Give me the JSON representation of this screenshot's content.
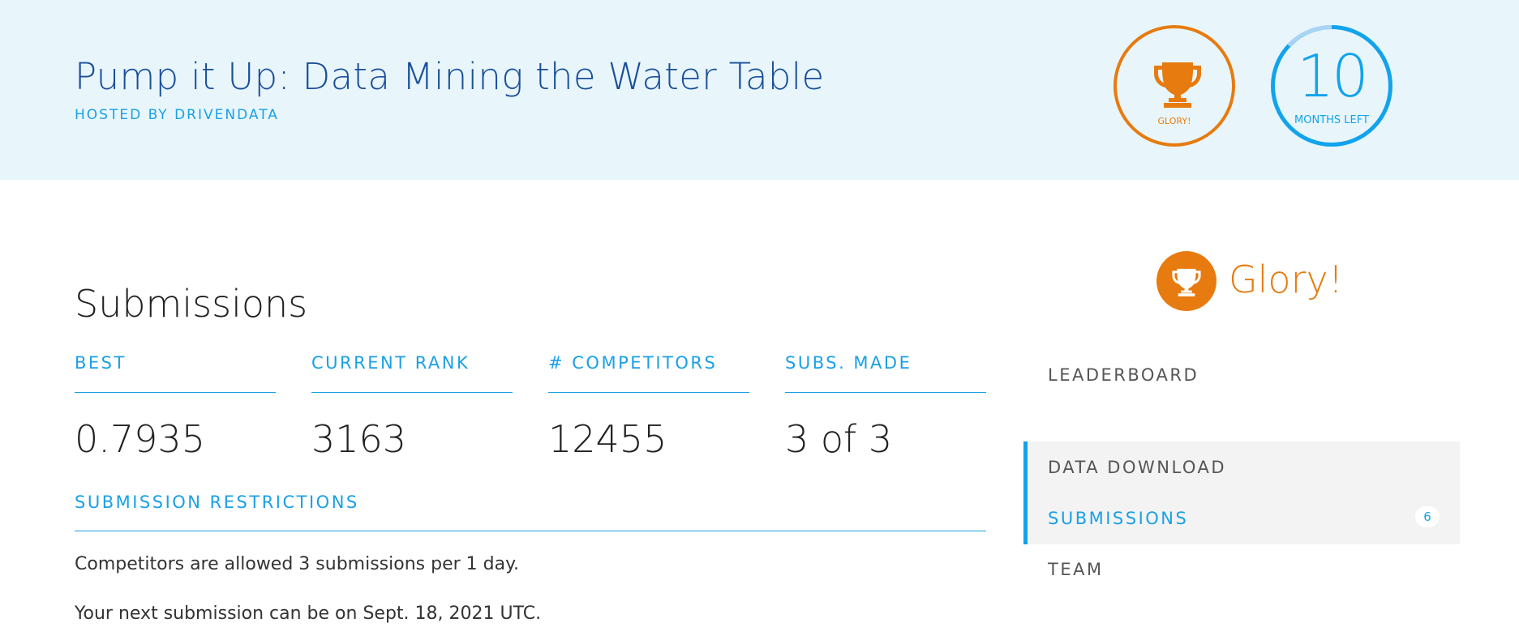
{
  "header": {
    "title": "Pump it Up: Data Mining the Water Table",
    "host": "HOSTED BY DRIVENDATA",
    "badges": {
      "glory": {
        "label": "GLORY!",
        "icon": "trophy-icon",
        "color": "#e77b0f"
      },
      "months": {
        "number": "10",
        "label": "MONTHS LEFT",
        "color": "#12a3ec"
      }
    }
  },
  "main": {
    "title": "Submissions",
    "stats": [
      {
        "label": "BEST",
        "value": "0.7935"
      },
      {
        "label": "CURRENT RANK",
        "value": "3163"
      },
      {
        "label": "# COMPETITORS",
        "value": "12455"
      },
      {
        "label": "SUBS. MADE",
        "value": "3 of 3"
      }
    ],
    "restrictions": {
      "label": "SUBMISSION RESTRICTIONS",
      "line1": "Competitors are allowed 3 submissions per 1 day.",
      "line2": "Your next submission can be on Sept. 18, 2021 UTC."
    }
  },
  "sidebar": {
    "prize": {
      "label": "Glory!",
      "icon": "trophy-icon"
    },
    "nav": [
      {
        "label": "LEADERBOARD"
      },
      {
        "label": "DATA DOWNLOAD"
      },
      {
        "label": "SUBMISSIONS",
        "active": true,
        "count": "6"
      },
      {
        "label": "TEAM"
      }
    ]
  },
  "colors": {
    "accent": "#1aa0e6",
    "glory": "#e77b0f",
    "heroBg": "#e8f6fc",
    "title": "#1b4f9a"
  }
}
